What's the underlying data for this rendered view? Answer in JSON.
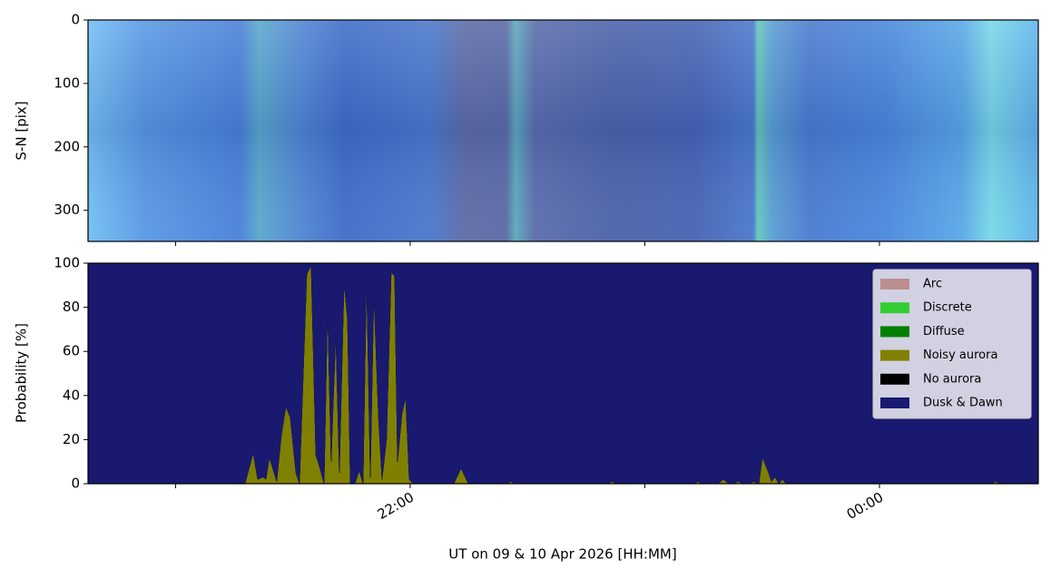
{
  "chart_data": [
    {
      "type": "image",
      "ylabel": "S-N [pix]",
      "ylim": [
        349,
        0
      ],
      "yticks": [
        0,
        100,
        200,
        300
      ],
      "xlim": [
        20.627,
        24.677
      ],
      "xminorticks": [
        21,
        22,
        23,
        24
      ]
    },
    {
      "type": "area",
      "stacked": true,
      "xlabel": "UT on 09 & 10 Apr 2026 [HH:MM]",
      "ylabel": "Probability [%]",
      "x": [
        20.627,
        21.296,
        21.331,
        21.35,
        21.373,
        21.385,
        21.4,
        21.431,
        21.451,
        21.47,
        21.489,
        21.513,
        21.528,
        21.559,
        21.578,
        21.598,
        21.613,
        21.633,
        21.648,
        21.663,
        21.683,
        21.698,
        21.718,
        21.733,
        21.745,
        21.764,
        21.783,
        21.799,
        21.814,
        21.83,
        21.845,
        21.865,
        21.88,
        21.899,
        21.919,
        21.934,
        21.946,
        21.965,
        21.981,
        21.996,
        22.012,
        22.186,
        22.217,
        22.248,
        22.41,
        22.429,
        22.445,
        22.843,
        22.859,
        22.882,
        23.211,
        23.226,
        23.242,
        23.311,
        23.335,
        23.358,
        23.377,
        23.397,
        23.424,
        23.447,
        23.462,
        23.486,
        23.501,
        23.524,
        23.54,
        23.555,
        23.571,
        23.586,
        23.602,
        24.46,
        24.476,
        24.495,
        24.515,
        24.677
      ],
      "series": [
        {
          "name": "Arc",
          "color": "#bc8f8f",
          "values": [
            0,
            0,
            0,
            0,
            0,
            0,
            0,
            0,
            0,
            0,
            0,
            0,
            0,
            0,
            0,
            0,
            0,
            0,
            0,
            0,
            0,
            0,
            0,
            0,
            0,
            0,
            0,
            0,
            0,
            0,
            0,
            0,
            0,
            0,
            0,
            0,
            0,
            0,
            0,
            0,
            0,
            0,
            0,
            0,
            0,
            0,
            0,
            0,
            0,
            0,
            0,
            0,
            0,
            0,
            0,
            0,
            0,
            0,
            0,
            0,
            0,
            0,
            0,
            0,
            0,
            0,
            0,
            0,
            0,
            0,
            0,
            0,
            0,
            0
          ]
        },
        {
          "name": "Discrete",
          "color": "#32cd32",
          "values": [
            0,
            0,
            0,
            0,
            0,
            0,
            0,
            0,
            0,
            0,
            0,
            0,
            0,
            0,
            0,
            0,
            0,
            0,
            0,
            0,
            0,
            0,
            0,
            0,
            0,
            0,
            0,
            0,
            0,
            0,
            0,
            0,
            0,
            0,
            0,
            0,
            0,
            0,
            0,
            0,
            0,
            0,
            0,
            0,
            0,
            0,
            0,
            0,
            0,
            0,
            0,
            0,
            0,
            0,
            0,
            0,
            0,
            0,
            0,
            0,
            0,
            0,
            0,
            0,
            0,
            0,
            0,
            0,
            0,
            0,
            0,
            0,
            0,
            0
          ]
        },
        {
          "name": "Diffuse",
          "color": "#008000",
          "values": [
            0,
            0,
            0,
            0,
            0,
            0,
            0,
            0,
            0,
            0,
            0,
            0,
            0,
            0,
            0,
            0,
            0,
            0,
            0,
            0,
            0,
            0,
            0,
            0,
            0,
            0,
            0,
            0,
            0,
            0,
            0,
            0,
            0,
            0,
            0,
            0,
            0,
            0,
            0,
            0,
            0,
            0,
            0,
            0,
            0,
            0,
            0,
            0,
            0,
            0,
            0,
            0,
            0,
            0,
            0,
            0,
            0,
            0,
            0,
            0,
            0,
            0,
            0,
            0,
            0,
            0,
            0,
            0,
            0,
            0,
            0,
            0,
            0,
            0
          ]
        },
        {
          "name": "Noisy aurora",
          "color": "#808000",
          "values": [
            0,
            0,
            14,
            2,
            3,
            2,
            12,
            1,
            22,
            35,
            30,
            5,
            0,
            95,
            99,
            13,
            8,
            0,
            81,
            10,
            69,
            5,
            91,
            75,
            0,
            0,
            6,
            0,
            95,
            3,
            87,
            30,
            2,
            20,
            96,
            94,
            10,
            32,
            39,
            2,
            0,
            0,
            7,
            0,
            0,
            1,
            0,
            0,
            1,
            0,
            0,
            1,
            0,
            0,
            2,
            0,
            0,
            1,
            0,
            0,
            1,
            0,
            12,
            6,
            1,
            3,
            0,
            2,
            0,
            0,
            0,
            1,
            0,
            0
          ]
        },
        {
          "name": "No aurora",
          "color": "#000000",
          "values": [
            0,
            0,
            0,
            0,
            0,
            0,
            0,
            0,
            0,
            0,
            0,
            0,
            0,
            0,
            0,
            0,
            0,
            0,
            0,
            0,
            0,
            0,
            0,
            0,
            0,
            0,
            0,
            0,
            0,
            0,
            0,
            0,
            0,
            0,
            0,
            0,
            0,
            0,
            0,
            0,
            0,
            0,
            0,
            0,
            0,
            0,
            0,
            0,
            0,
            0,
            0,
            0,
            0,
            0,
            0,
            0,
            0,
            0,
            0,
            0,
            0,
            0,
            0,
            0,
            0,
            0,
            0,
            0,
            0,
            0,
            0,
            0,
            0,
            0
          ]
        },
        {
          "name": "Dusk & Dawn",
          "color": "#191970",
          "values": [
            100,
            100,
            86,
            98,
            97,
            98,
            88,
            99,
            78,
            65,
            70,
            95,
            100,
            5,
            1,
            87,
            92,
            100,
            19,
            90,
            31,
            95,
            9,
            25,
            100,
            100,
            94,
            100,
            5,
            97,
            13,
            70,
            98,
            80,
            4,
            6,
            90,
            68,
            61,
            98,
            100,
            100,
            93,
            100,
            100,
            99,
            100,
            100,
            99,
            100,
            100,
            99,
            100,
            100,
            98,
            100,
            100,
            99,
            100,
            100,
            99,
            100,
            88,
            94,
            99,
            97,
            100,
            98,
            100,
            100,
            100,
            99,
            100,
            100
          ]
        }
      ],
      "xlim": [
        20.627,
        24.677
      ],
      "xticks": [
        {
          "value": 22,
          "label": "22:00"
        },
        {
          "value": 24,
          "label": "00:00"
        }
      ],
      "xminorticks": [
        21,
        23
      ],
      "ylim": [
        0,
        100
      ],
      "yticks": [
        0,
        20,
        40,
        60,
        80,
        100
      ],
      "legend": "upper right"
    }
  ]
}
